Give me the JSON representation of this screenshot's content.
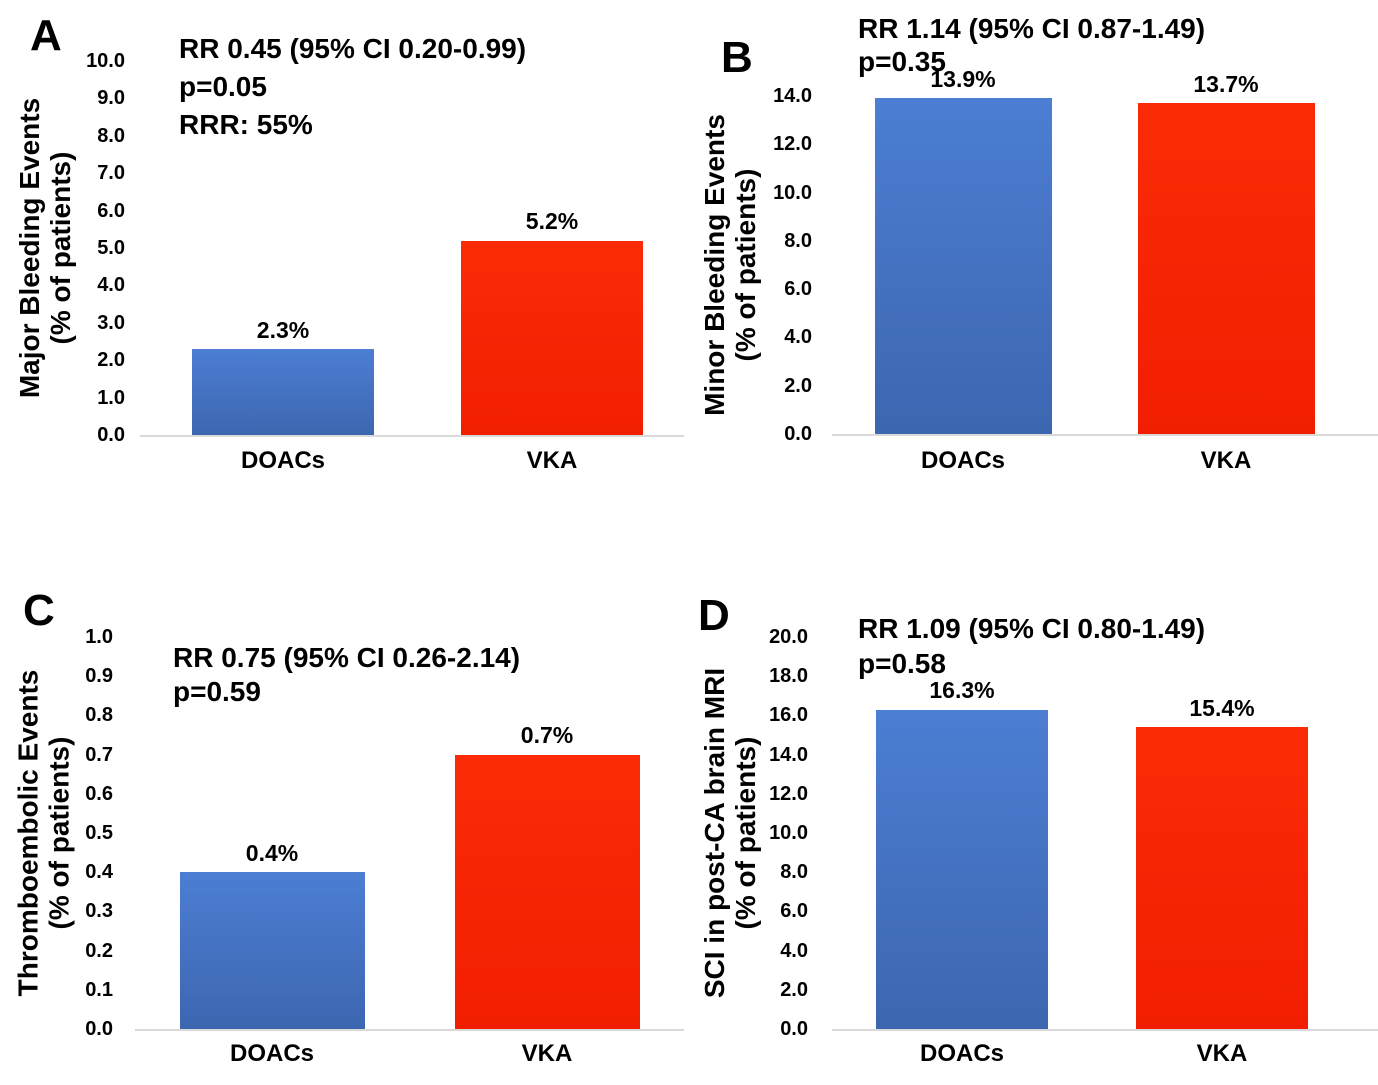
{
  "colors": {
    "doacs_bar_top": "#4d7ed3",
    "doacs_bar_bottom": "#3c66b0",
    "vka_bar_top": "#fb2b07",
    "vka_bar_bottom": "#f21e00",
    "axis_line": "#d9d9d9",
    "text": "#000000"
  },
  "chart_data": [
    {
      "panel": "A",
      "type": "bar",
      "ylabel": "Major Bleeding Events",
      "ylabel_unit": "(% of patients)",
      "annotation": [
        "RR 0.45 (95% CI 0.20-0.99)",
        "p=0.05",
        "RRR: 55%"
      ],
      "categories": [
        "DOACs",
        "VKA"
      ],
      "values": [
        2.3,
        5.2
      ],
      "value_labels": [
        "2.3%",
        "5.2%"
      ],
      "ylim": [
        0,
        10
      ],
      "ytick_interval": 1,
      "yticks": [
        "10.0",
        "9.0",
        "8.0",
        "7.0",
        "6.0",
        "5.0",
        "4.0",
        "3.0",
        "2.0",
        "1.0",
        "0.0"
      ],
      "grid": false,
      "legend": false
    },
    {
      "panel": "B",
      "type": "bar",
      "ylabel": "Minor Bleeding Events",
      "ylabel_unit": "(% of patients)",
      "annotation": [
        "RR 1.14 (95% CI 0.87-1.49)",
        "p=0.35"
      ],
      "categories": [
        "DOACs",
        "VKA"
      ],
      "values": [
        13.9,
        13.7
      ],
      "value_labels": [
        "13.9%",
        "13.7%"
      ],
      "ylim": [
        0,
        14
      ],
      "ytick_interval": 2,
      "yticks": [
        "14.0",
        "12.0",
        "10.0",
        "8.0",
        "6.0",
        "4.0",
        "2.0",
        "0.0"
      ],
      "grid": false,
      "legend": false
    },
    {
      "panel": "C",
      "type": "bar",
      "ylabel": "Thromboembolic Events",
      "ylabel_unit": "(% of patients)",
      "annotation": [
        "RR 0.75 (95% CI 0.26-2.14)",
        "p=0.59"
      ],
      "categories": [
        "DOACs",
        "VKA"
      ],
      "values": [
        0.4,
        0.7
      ],
      "value_labels": [
        "0.4%",
        "0.7%"
      ],
      "ylim": [
        0,
        1.0
      ],
      "ytick_interval": 0.1,
      "yticks": [
        "1.0",
        "0.9",
        "0.8",
        "0.7",
        "0.6",
        "0.5",
        "0.4",
        "0.3",
        "0.2",
        "0.1",
        "0.0"
      ],
      "grid": false,
      "legend": false
    },
    {
      "panel": "D",
      "type": "bar",
      "ylabel": "SCI in post-CA brain MRI",
      "ylabel_unit": "(% of patients)",
      "annotation": [
        "RR 1.09 (95% CI 0.80-1.49)",
        "p=0.58"
      ],
      "categories": [
        "DOACs",
        "VKA"
      ],
      "values": [
        16.3,
        15.4
      ],
      "value_labels": [
        "16.3%",
        "15.4%"
      ],
      "ylim": [
        0,
        20
      ],
      "ytick_interval": 2,
      "yticks": [
        "20.0",
        "18.0",
        "16.0",
        "14.0",
        "12.0",
        "10.0",
        "8.0",
        "6.0",
        "4.0",
        "2.0",
        "0.0"
      ],
      "grid": false,
      "legend": false
    }
  ]
}
